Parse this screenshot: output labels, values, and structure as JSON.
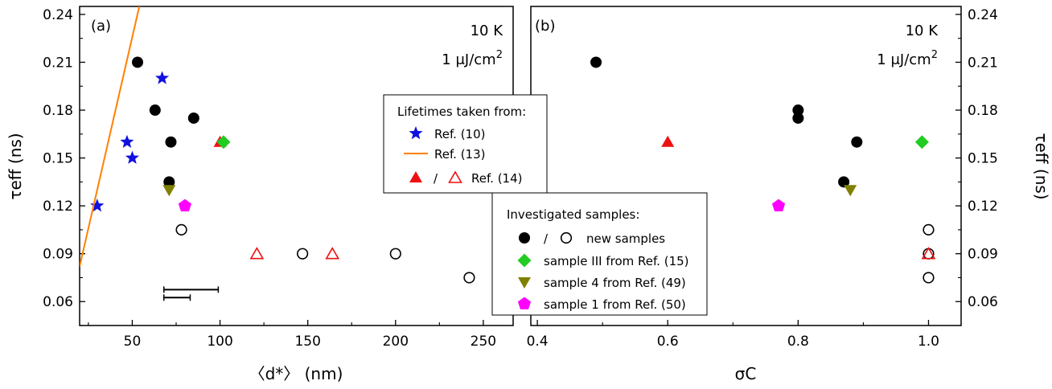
{
  "figure": {
    "panel_a": {
      "label": "(a)",
      "condition_temperature": "10 K",
      "condition_fluence_text": "1 μJ/cm",
      "condition_fluence_exp": "2",
      "xlabel": "〈d*〉 (nm)",
      "ylabel": "τeff (ns)",
      "xticks": [
        "50",
        "100",
        "150",
        "200",
        "250"
      ],
      "yticks": [
        "0.06",
        "0.09",
        "0.12",
        "0.15",
        "0.18",
        "0.21",
        "0.24"
      ]
    },
    "panel_b": {
      "label": "(b)",
      "condition_temperature": "10 K",
      "condition_fluence_text": "1 μJ/cm",
      "condition_fluence_exp": "2",
      "xlabel": "σC",
      "ylabel": "τeff (ns)",
      "xticks": [
        "0.4",
        "0.6",
        "0.8",
        "1.0"
      ],
      "yticks": [
        "0.06",
        "0.09",
        "0.12",
        "0.15",
        "0.18",
        "0.21",
        "0.24"
      ]
    },
    "legend_lifetimes": {
      "title": "Lifetimes taken from:",
      "items": [
        "Ref. (10)",
        "Ref. (13)",
        "Ref. (14)"
      ],
      "slash": "/"
    },
    "legend_samples": {
      "title": "Investigated samples:",
      "items": [
        "new samples",
        "sample III from Ref. (15)",
        "sample 4 from Ref. (49)",
        "sample 1 from Ref. (50)"
      ],
      "slash": "/"
    }
  },
  "colors": {
    "blue_star": "#1010e0",
    "orange_line": "#ff8000",
    "red_triangle": "#ee1111",
    "green_diamond": "#22cc22",
    "olive_triangle": "#808000",
    "magenta_pentagon": "#ff00ff",
    "black": "#000000"
  },
  "chart_data": [
    {
      "type": "scatter",
      "panel": "a",
      "xlabel": "〈d*〉 (nm)",
      "ylabel": "τeff (ns)",
      "xlim": [
        20,
        267
      ],
      "ylim": [
        0.045,
        0.245
      ],
      "series": [
        {
          "name": "new samples (filled)",
          "marker": "circle-filled",
          "x": [
            53,
            63,
            71,
            72,
            85
          ],
          "y": [
            0.21,
            0.18,
            0.135,
            0.16,
            0.175
          ]
        },
        {
          "name": "new samples (open)",
          "marker": "circle-open",
          "x": [
            78,
            147,
            200,
            242
          ],
          "y": [
            0.105,
            0.09,
            0.09,
            0.075
          ]
        },
        {
          "name": "Ref. (10)",
          "marker": "star",
          "x": [
            30,
            47,
            50,
            67
          ],
          "y": [
            0.12,
            0.16,
            0.15,
            0.2
          ]
        },
        {
          "name": "Ref. (13)",
          "marker": "line",
          "x": [
            20,
            54
          ],
          "y": [
            0.082,
            0.245
          ]
        },
        {
          "name": "Ref. (14) (filled)",
          "marker": "triangle-up-filled",
          "x": [
            100
          ],
          "y": [
            0.16
          ]
        },
        {
          "name": "Ref. (14) (open)",
          "marker": "triangle-up-open",
          "x": [
            121,
            164
          ],
          "y": [
            0.09,
            0.09
          ]
        },
        {
          "name": "sample III from Ref. (15)",
          "marker": "diamond",
          "x": [
            102
          ],
          "y": [
            0.16
          ]
        },
        {
          "name": "sample 4 from Ref. (49)",
          "marker": "triangle-down",
          "x": [
            71
          ],
          "y": [
            0.13
          ]
        },
        {
          "name": "sample 1 from Ref. (50)",
          "marker": "pentagon",
          "x": [
            80
          ],
          "y": [
            0.12
          ]
        }
      ],
      "error_bars": [
        {
          "x_from": 68,
          "x_to": 99,
          "y": 0.0675
        },
        {
          "x_from": 68,
          "x_to": 83,
          "y": 0.0625
        }
      ]
    },
    {
      "type": "scatter",
      "panel": "b",
      "xlabel": "σC",
      "ylabel": "τeff (ns)",
      "xlim": [
        0.39,
        1.05
      ],
      "ylim": [
        0.045,
        0.245
      ],
      "series": [
        {
          "name": "new samples (filled)",
          "marker": "circle-filled",
          "x": [
            0.49,
            0.8,
            0.8,
            0.87,
            0.89
          ],
          "y": [
            0.21,
            0.18,
            0.175,
            0.135,
            0.16
          ]
        },
        {
          "name": "new samples (open)",
          "marker": "circle-open",
          "x": [
            1.0,
            1.0,
            1.0
          ],
          "y": [
            0.105,
            0.09,
            0.075
          ]
        },
        {
          "name": "Ref. (14) (filled)",
          "marker": "triangle-up-filled",
          "x": [
            0.6
          ],
          "y": [
            0.16
          ]
        },
        {
          "name": "Ref. (14) (open)",
          "marker": "triangle-up-open",
          "x": [
            1.0
          ],
          "y": [
            0.09
          ]
        },
        {
          "name": "sample III from Ref. (15)",
          "marker": "diamond",
          "x": [
            0.99
          ],
          "y": [
            0.16
          ]
        },
        {
          "name": "sample 4 from Ref. (49)",
          "marker": "triangle-down",
          "x": [
            0.88
          ],
          "y": [
            0.13
          ]
        },
        {
          "name": "sample 1 from Ref. (50)",
          "marker": "pentagon",
          "x": [
            0.77
          ],
          "y": [
            0.12
          ]
        }
      ]
    }
  ]
}
